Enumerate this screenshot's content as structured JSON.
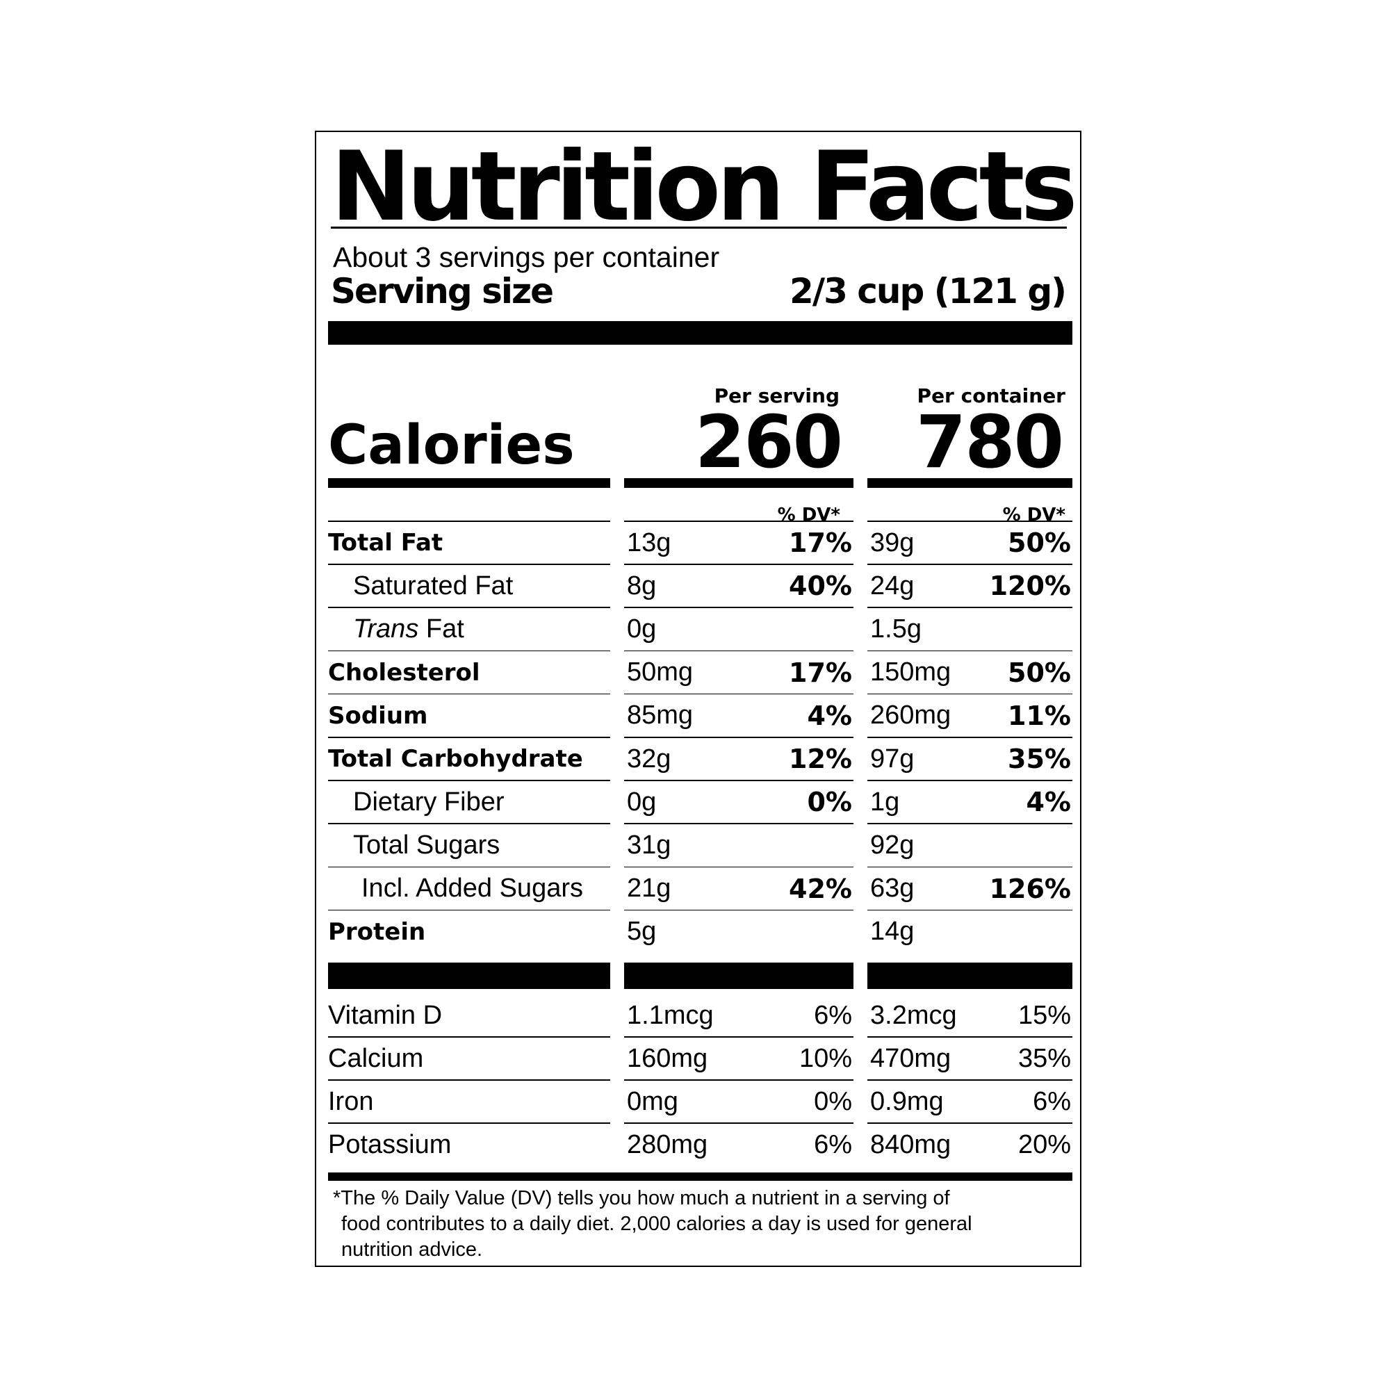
{
  "title": "Nutrition Facts",
  "servings_per_container": "About 3 servings per container",
  "serving_size": {
    "label": "Serving size",
    "value": "2/3 cup (121 g)"
  },
  "columns": {
    "per_serving": "Per serving",
    "per_container": "Per container"
  },
  "calories": {
    "label": "Calories",
    "per_serving": "260",
    "per_container": "780"
  },
  "dv_header": "% DV*",
  "nutrients": [
    {
      "name": "Total Fat",
      "serving_amount": "13g",
      "serving_dv": "17%",
      "container_amount": "39g",
      "container_dv": "50%"
    },
    {
      "name": "Saturated Fat",
      "serving_amount": "8g",
      "serving_dv": "40%",
      "container_amount": "24g",
      "container_dv": "120%"
    },
    {
      "name_italic": "Trans",
      "name_rest": " Fat",
      "serving_amount": "0g",
      "serving_dv": "",
      "container_amount": "1.5g",
      "container_dv": ""
    },
    {
      "name": "Cholesterol",
      "serving_amount": "50mg",
      "serving_dv": "17%",
      "container_amount": "150mg",
      "container_dv": "50%"
    },
    {
      "name": "Sodium",
      "serving_amount": "85mg",
      "serving_dv": "4%",
      "container_amount": "260mg",
      "container_dv": "11%"
    },
    {
      "name": "Total Carbohydrate",
      "serving_amount": "32g",
      "serving_dv": "12%",
      "container_amount": "97g",
      "container_dv": "35%"
    },
    {
      "name": "Dietary Fiber",
      "serving_amount": "0g",
      "serving_dv": "0%",
      "container_amount": "1g",
      "container_dv": "4%"
    },
    {
      "name": "Total Sugars",
      "serving_amount": "31g",
      "serving_dv": "",
      "container_amount": "92g",
      "container_dv": ""
    },
    {
      "name": "Incl. Added Sugars",
      "serving_amount": "21g",
      "serving_dv": "42%",
      "container_amount": "63g",
      "container_dv": "126%"
    },
    {
      "name": "Protein",
      "serving_amount": "5g",
      "serving_dv": "",
      "container_amount": "14g",
      "container_dv": ""
    }
  ],
  "vitamins": [
    {
      "name": "Vitamin D",
      "serving_amount": "1.1mcg",
      "serving_dv": "6%",
      "container_amount": "3.2mcg",
      "container_dv": "15%"
    },
    {
      "name": "Calcium",
      "serving_amount": "160mg",
      "serving_dv": "10%",
      "container_amount": "470mg",
      "container_dv": "35%"
    },
    {
      "name": "Iron",
      "serving_amount": "0mg",
      "serving_dv": "0%",
      "container_amount": "0.9mg",
      "container_dv": "6%"
    },
    {
      "name": "Potassium",
      "serving_amount": "280mg",
      "serving_dv": "6%",
      "container_amount": "840mg",
      "container_dv": "20%"
    }
  ],
  "footnote": {
    "line1": "*The % Daily Value (DV) tells you how much a nutrient in a serving of",
    "line2": "food contributes to a daily diet. 2,000 calories a day is used for general",
    "line3": "nutrition advice."
  }
}
